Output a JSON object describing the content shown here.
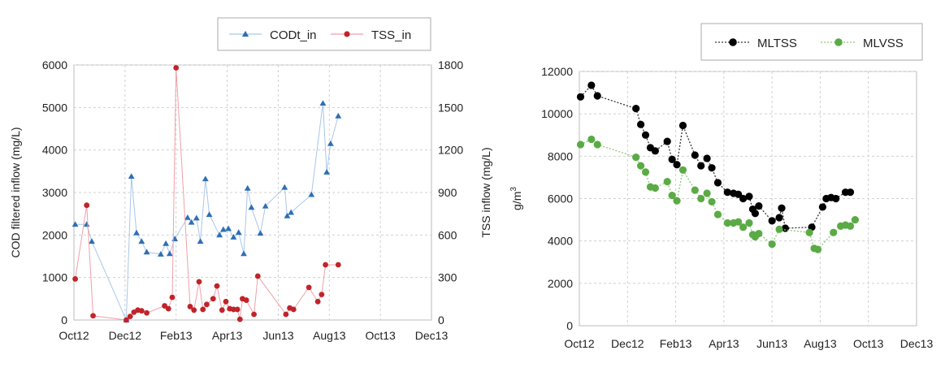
{
  "chart_data": [
    {
      "type": "line",
      "title": "",
      "xlabel": "",
      "ylabel_left": "COD filtered inflow (mg/L)",
      "ylabel_right": "TSS inflow (mg/L)",
      "x_ticks": [
        "Oct12",
        "Dec12",
        "Feb13",
        "Apr13",
        "Jun13",
        "Aug13",
        "Oct13",
        "Dec13"
      ],
      "y_left_ticks": [
        "0",
        "1000",
        "2000",
        "3000",
        "4000",
        "5000",
        "6000"
      ],
      "y_right_ticks": [
        "0",
        "300",
        "600",
        "900",
        "1200",
        "1500",
        "1800"
      ],
      "ylim_left": [
        0,
        6000
      ],
      "ylim_right": [
        0,
        1800
      ],
      "xlim_months": [
        0,
        14
      ],
      "legend": "top-right",
      "series": [
        {
          "name": "CODt_in",
          "axis": "left",
          "color": "#2e6fb5",
          "line_color": "#a9c6ea",
          "marker": "triangle",
          "x": [
            0.05,
            0.5,
            0.7,
            2.05,
            2.25,
            2.45,
            2.65,
            2.85,
            3.4,
            3.6,
            3.75,
            3.95,
            4.45,
            4.6,
            4.8,
            4.95,
            5.15,
            5.3,
            5.7,
            5.85,
            6.05,
            6.25,
            6.45,
            6.65,
            6.8,
            6.95,
            7.3,
            7.5,
            8.25,
            8.35,
            8.5,
            9.3,
            9.75,
            9.9,
            10.05,
            10.35
          ],
          "y": [
            2250,
            2250,
            1850,
            0,
            3380,
            2050,
            1850,
            1600,
            1550,
            1800,
            1560,
            1910,
            2410,
            2300,
            2400,
            1850,
            3320,
            2480,
            2000,
            2130,
            2150,
            1950,
            2060,
            1560,
            3100,
            2650,
            2040,
            2680,
            3120,
            2450,
            2530,
            2950,
            5100,
            3480,
            4150,
            4800
          ]
        },
        {
          "name": "TSS_in",
          "axis": "right",
          "color": "#c0242a",
          "line_color": "#f0a0a8",
          "marker": "circle",
          "x": [
            0.05,
            0.5,
            0.75,
            2.05,
            2.2,
            2.35,
            2.5,
            2.65,
            2.85,
            3.55,
            3.7,
            3.85,
            4.0,
            4.55,
            4.7,
            4.9,
            5.05,
            5.2,
            5.45,
            5.6,
            5.8,
            5.95,
            6.1,
            6.25,
            6.4,
            6.5,
            6.6,
            6.75,
            7.05,
            7.2,
            8.3,
            8.45,
            8.6,
            9.2,
            9.55,
            9.7,
            9.85,
            10.35
          ],
          "y": [
            290,
            810,
            30,
            0,
            25,
            55,
            70,
            65,
            50,
            100,
            80,
            160,
            1780,
            95,
            70,
            270,
            75,
            110,
            150,
            240,
            70,
            130,
            80,
            75,
            75,
            5,
            150,
            140,
            40,
            310,
            40,
            85,
            75,
            230,
            130,
            180,
            390,
            390
          ]
        }
      ]
    },
    {
      "type": "line",
      "title": "",
      "xlabel": "",
      "ylabel": "g/m3",
      "x_ticks": [
        "Oct12",
        "Dec12",
        "Feb13",
        "Apr13",
        "Jun13",
        "Aug13",
        "Oct13",
        "Dec13"
      ],
      "y_ticks": [
        "0",
        "2000",
        "4000",
        "6000",
        "8000",
        "10000",
        "12000"
      ],
      "ylim": [
        0,
        12000
      ],
      "xlim_months": [
        0,
        14
      ],
      "legend": "top-right",
      "series": [
        {
          "name": "MLTSS",
          "color": "#000000",
          "line_color": "#333333",
          "marker": "circle",
          "x": [
            0.05,
            0.5,
            0.75,
            2.35,
            2.55,
            2.75,
            2.95,
            3.15,
            3.65,
            3.85,
            4.05,
            4.3,
            4.8,
            5.05,
            5.3,
            5.5,
            5.75,
            6.15,
            6.4,
            6.6,
            6.8,
            7.05,
            7.2,
            7.3,
            7.45,
            8.0,
            8.3,
            8.4,
            8.55,
            9.65,
            10.1,
            10.25,
            10.45,
            10.65,
            11.05,
            11.25
          ],
          "y": [
            10800,
            11350,
            10850,
            10250,
            9500,
            9000,
            8400,
            8250,
            8700,
            7850,
            7600,
            9450,
            8050,
            7550,
            7900,
            7450,
            6750,
            6300,
            6250,
            6200,
            6000,
            6100,
            5500,
            5300,
            5650,
            4950,
            5100,
            5550,
            4600,
            4650,
            5600,
            6000,
            6050,
            6000,
            6300,
            6300
          ]
        },
        {
          "name": "MLVSS",
          "color": "#5aab45",
          "line_color": "#8cc878",
          "marker": "circle",
          "x": [
            0.05,
            0.5,
            0.75,
            2.35,
            2.55,
            2.75,
            2.95,
            3.15,
            3.65,
            3.85,
            4.05,
            4.3,
            4.8,
            5.05,
            5.3,
            5.5,
            5.75,
            6.15,
            6.4,
            6.6,
            6.8,
            7.05,
            7.2,
            7.3,
            7.45,
            8.0,
            8.3,
            9.55,
            9.75,
            9.9,
            10.55,
            10.85,
            11.05,
            11.25,
            11.45
          ],
          "y": [
            8550,
            8800,
            8550,
            7950,
            7550,
            7250,
            6550,
            6500,
            6800,
            6150,
            5900,
            7350,
            6400,
            6000,
            6250,
            5850,
            5250,
            4850,
            4850,
            4900,
            4650,
            4850,
            4300,
            4200,
            4350,
            3850,
            4550,
            4400,
            3650,
            3600,
            4400,
            4700,
            4750,
            4700,
            5000
          ]
        }
      ]
    }
  ]
}
